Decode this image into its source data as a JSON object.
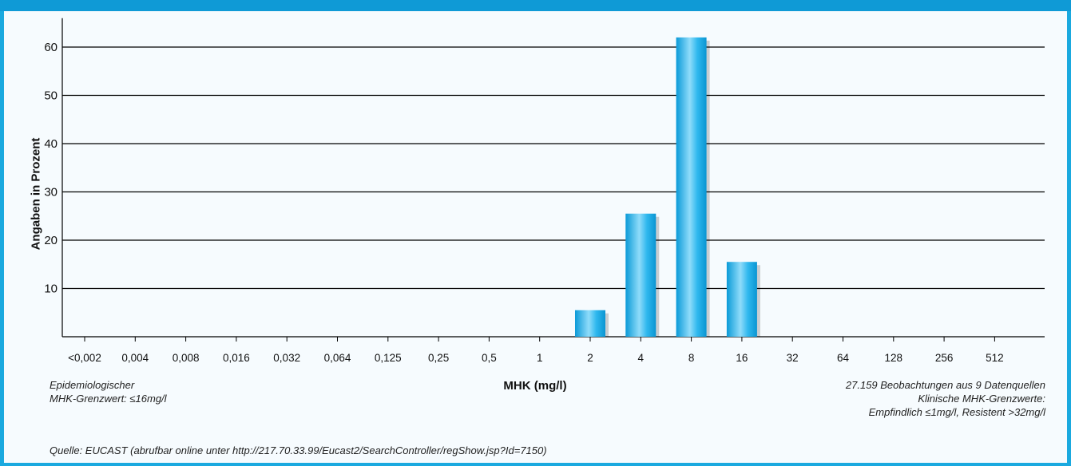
{
  "header": {
    "title": ""
  },
  "chart_data": {
    "type": "bar",
    "title": "",
    "xlabel": "MHK (mg/l)",
    "ylabel": "Angaben in Prozent",
    "categories": [
      "<0,002",
      "0,004",
      "0,008",
      "0,016",
      "0,032",
      "0,064",
      "0,125",
      "0,25",
      "0,5",
      "1",
      "2",
      "4",
      "8",
      "16",
      "32",
      "64",
      "128",
      "256",
      "512"
    ],
    "values": [
      0,
      0,
      0,
      0,
      0,
      0,
      0,
      0,
      0,
      0,
      5.5,
      25.5,
      62,
      15.5,
      0,
      0,
      0,
      0,
      0
    ],
    "ylim": [
      0,
      65
    ],
    "yticks": [
      10,
      20,
      30,
      40,
      50,
      60
    ],
    "grid": true,
    "colors": {
      "bar": "#1bb0ea",
      "bar_highlight": "#8fdcfa",
      "frame": "#1aa9df"
    }
  },
  "notes": {
    "left_line1": "Epidemiologischer",
    "left_line2": "MHK-Grenzwert:  ≤16mg/l",
    "right_line1": "27.159 Beobachtungen aus 9 Datenquellen",
    "right_line2": "Klinische MHK-Grenzwerte:",
    "right_line3": "Empfindlich ≤1mg/l, Resistent >32mg/l",
    "source": "Quelle: EUCAST (abrufbar online unter http://217.70.33.99/Eucast2/SearchController/regShow.jsp?Id=7150)"
  }
}
